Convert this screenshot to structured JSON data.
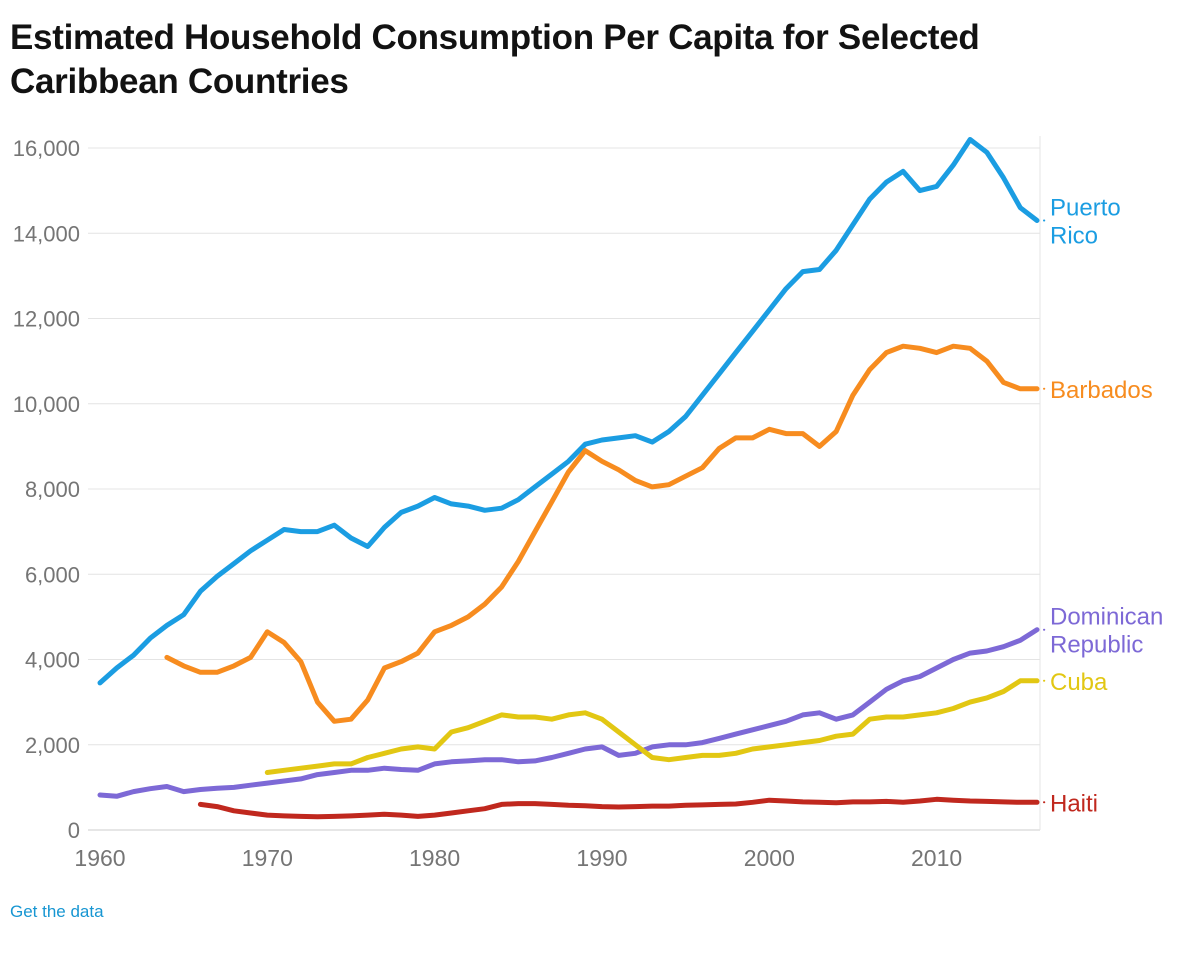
{
  "header": {
    "title_lines": [
      "Estimated Household Consumption Per Capita for Selected",
      "Caribbean Countries"
    ]
  },
  "footer": {
    "link_label": "Get the data",
    "link_color": "#1796d2"
  },
  "chart_data": {
    "type": "line",
    "title": "Estimated Household Consumption Per Capita for Selected Caribbean Countries",
    "xlabel": "",
    "ylabel": "",
    "xlim": [
      1960,
      2016
    ],
    "ylim": [
      0,
      16000
    ],
    "grid": "horizontal",
    "legend_position": "right-edge-labels",
    "x_ticks": [
      {
        "value": 1960,
        "label": "1960"
      },
      {
        "value": 1970,
        "label": "1970"
      },
      {
        "value": 1980,
        "label": "1980"
      },
      {
        "value": 1990,
        "label": "1990"
      },
      {
        "value": 2000,
        "label": "2000"
      },
      {
        "value": 2010,
        "label": "2010"
      }
    ],
    "y_ticks": [
      {
        "value": 0,
        "label": "0"
      },
      {
        "value": 2000,
        "label": "2,000"
      },
      {
        "value": 4000,
        "label": "4,000"
      },
      {
        "value": 6000,
        "label": "6,000"
      },
      {
        "value": 8000,
        "label": "8,000"
      },
      {
        "value": 10000,
        "label": "10,000"
      },
      {
        "value": 12000,
        "label": "12,000"
      },
      {
        "value": 14000,
        "label": "14,000"
      },
      {
        "value": 16000,
        "label": "16,000"
      }
    ],
    "series": [
      {
        "name": "Puerto Rico",
        "label_lines": [
          "Puerto",
          "Rico"
        ],
        "color": "#1b9de2",
        "start_year": 1960,
        "values": [
          3450,
          3800,
          4100,
          4500,
          4800,
          5050,
          5600,
          5950,
          6250,
          6550,
          6800,
          7050,
          7000,
          7000,
          7150,
          6850,
          6650,
          7100,
          7450,
          7600,
          7800,
          7650,
          7600,
          7500,
          7550,
          7750,
          8050,
          8350,
          8650,
          9050,
          9150,
          9200,
          9250,
          9100,
          9350,
          9700,
          10200,
          10700,
          11200,
          11700,
          12200,
          12700,
          13100,
          13150,
          13600,
          14200,
          14800,
          15200,
          15450,
          15000,
          15100,
          15600,
          16200,
          15900,
          15300,
          14600,
          14300
        ]
      },
      {
        "name": "Barbados",
        "label_lines": [
          "Barbados"
        ],
        "color": "#f78c1f",
        "start_year": 1964,
        "values": [
          4050,
          3850,
          3700,
          3700,
          3850,
          4050,
          4650,
          4400,
          3950,
          3000,
          2550,
          2600,
          3050,
          3800,
          3950,
          4150,
          4650,
          4800,
          5000,
          5300,
          5700,
          6300,
          7000,
          7700,
          8400,
          8900,
          8650,
          8450,
          8200,
          8050,
          8100,
          8300,
          8500,
          8950,
          9200,
          9200,
          9400,
          9300,
          9300,
          9000,
          9350,
          10200,
          10800,
          11200,
          11350,
          11300,
          11200,
          11350,
          11300,
          11000,
          10500,
          10350,
          10350
        ]
      },
      {
        "name": "Dominican Republic",
        "label_lines": [
          "Dominican",
          "Republic"
        ],
        "color": "#7d69d6",
        "start_year": 1960,
        "values": [
          820,
          790,
          900,
          970,
          1020,
          900,
          950,
          980,
          1000,
          1050,
          1100,
          1150,
          1200,
          1300,
          1350,
          1400,
          1400,
          1450,
          1420,
          1400,
          1550,
          1600,
          1620,
          1650,
          1650,
          1600,
          1620,
          1700,
          1800,
          1900,
          1950,
          1750,
          1800,
          1950,
          2000,
          2000,
          2050,
          2150,
          2250,
          2350,
          2450,
          2550,
          2700,
          2750,
          2600,
          2700,
          3000,
          3300,
          3500,
          3600,
          3800,
          4000,
          4150,
          4200,
          4300,
          4450,
          4700
        ]
      },
      {
        "name": "Cuba",
        "label_lines": [
          "Cuba"
        ],
        "color": "#e2c713",
        "start_year": 1970,
        "values": [
          1350,
          1400,
          1450,
          1500,
          1550,
          1550,
          1700,
          1800,
          1900,
          1950,
          1900,
          2300,
          2400,
          2550,
          2700,
          2650,
          2650,
          2600,
          2700,
          2750,
          2600,
          2300,
          2000,
          1700,
          1650,
          1700,
          1750,
          1750,
          1800,
          1900,
          1950,
          2000,
          2050,
          2100,
          2200,
          2250,
          2600,
          2650,
          2650,
          2700,
          2750,
          2850,
          3000,
          3100,
          3250,
          3500,
          3500
        ]
      },
      {
        "name": "Haiti",
        "label_lines": [
          "Haiti"
        ],
        "color": "#c0281e",
        "start_year": 1966,
        "values": [
          600,
          550,
          450,
          400,
          350,
          330,
          320,
          310,
          320,
          330,
          350,
          370,
          350,
          320,
          350,
          400,
          450,
          500,
          600,
          620,
          620,
          600,
          580,
          570,
          550,
          540,
          550,
          560,
          560,
          580,
          590,
          600,
          610,
          650,
          700,
          680,
          660,
          650,
          640,
          660,
          660,
          670,
          650,
          680,
          720,
          700,
          680,
          670,
          660,
          650,
          650
        ]
      }
    ]
  }
}
